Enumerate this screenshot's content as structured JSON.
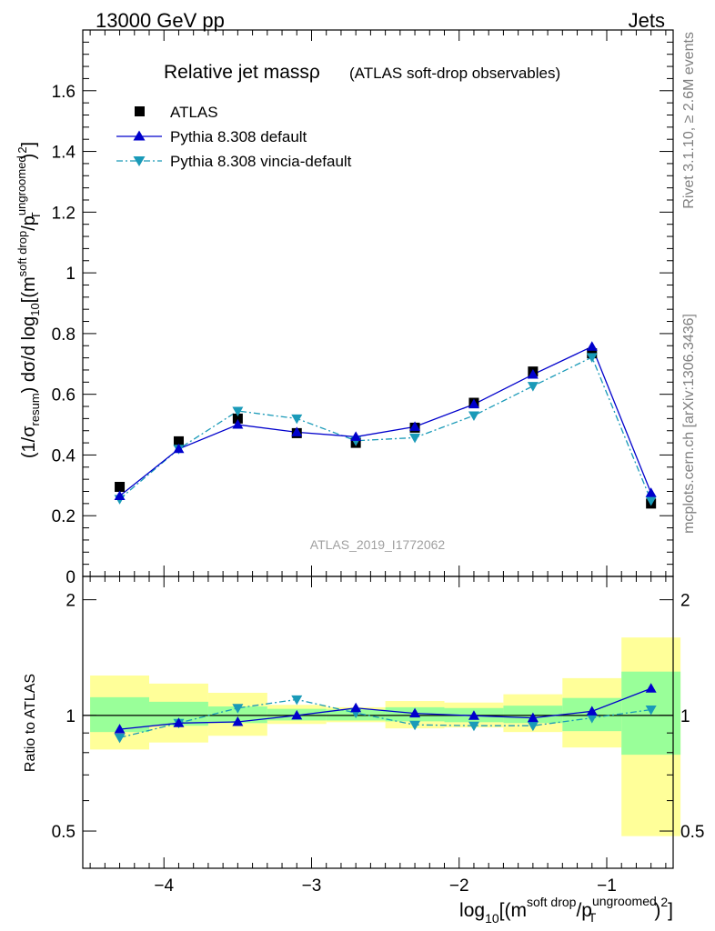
{
  "header": {
    "left": "13000 GeV pp",
    "right": "Jets"
  },
  "side_labels": {
    "rivet": "Rivet 3.1.10, ≥ 2.6M events",
    "mcplots": "mcplots.cern.ch [arXiv:1306.3436]"
  },
  "chart_data": [
    {
      "type": "scatter",
      "title": "Relative jet massρ",
      "subtitle": "(ATLAS soft-drop observables)",
      "analysis_label": "ATLAS_2019_I1772062",
      "ylabel": "(1/σresum) dσ/d log10[(m^soft drop/pT^ungroomed)^2]",
      "ylim": [
        0,
        1.8
      ],
      "yticks": [
        0,
        0.2,
        0.4,
        0.6,
        0.8,
        1,
        1.2,
        1.4,
        1.6
      ],
      "ytick_labels": [
        "0",
        "0.2",
        "0.4",
        "0.6",
        "0.8",
        "1",
        "1.2",
        "1.4",
        "1.6"
      ],
      "legend_position": "top-left",
      "x": [
        -4.3,
        -3.9,
        -3.5,
        -3.1,
        -2.7,
        -2.3,
        -1.9,
        -1.5,
        -1.1,
        -0.7
      ],
      "series": [
        {
          "name": "ATLAS",
          "marker": "square",
          "color": "#000000",
          "values": [
            0.295,
            0.445,
            0.52,
            0.472,
            0.44,
            0.49,
            0.572,
            0.675,
            0.735,
            0.24
          ]
        },
        {
          "name": "Pythia 8.308 default",
          "marker": "triangle-up",
          "color": "#0000cc",
          "line": "solid",
          "values": [
            0.265,
            0.42,
            0.5,
            0.475,
            0.46,
            0.493,
            0.567,
            0.665,
            0.757,
            0.275
          ]
        },
        {
          "name": "Pythia 8.308 vincia-default",
          "marker": "triangle-down",
          "color": "#1a9ab8",
          "line": "dash-dot",
          "values": [
            0.255,
            0.42,
            0.545,
            0.52,
            0.447,
            0.457,
            0.53,
            0.627,
            0.722,
            0.25
          ]
        }
      ]
    },
    {
      "type": "scatter",
      "ylabel": "Ratio to ATLAS",
      "xlabel": "log10[(m^soft drop/pT^ungroomed)^2]",
      "log_y": true,
      "ylim": [
        0.4,
        2.3
      ],
      "yticks": [
        0.5,
        1,
        2
      ],
      "ytick_labels": [
        "0.5",
        "1",
        "2"
      ],
      "xlim": [
        -4.55,
        -0.55
      ],
      "xticks": [
        -4,
        -3,
        -2,
        -1
      ],
      "xtick_labels": [
        "−4",
        "−3",
        "−2",
        "−1"
      ],
      "x": [
        -4.3,
        -3.9,
        -3.5,
        -3.1,
        -2.7,
        -2.3,
        -1.9,
        -1.5,
        -1.1,
        -0.7
      ],
      "bins": [
        [
          -4.5,
          -4.1
        ],
        [
          -4.1,
          -3.7
        ],
        [
          -3.7,
          -3.3
        ],
        [
          -3.3,
          -2.9
        ],
        [
          -2.9,
          -2.5
        ],
        [
          -2.5,
          -2.1
        ],
        [
          -2.1,
          -1.7
        ],
        [
          -1.7,
          -1.3
        ],
        [
          -1.3,
          -0.9
        ],
        [
          -0.9,
          -0.5
        ]
      ],
      "band_stat": [
        [
          0.905,
          1.115
        ],
        [
          0.94,
          1.085
        ],
        [
          0.955,
          1.055
        ],
        [
          0.97,
          1.04
        ],
        [
          0.97,
          1.035
        ],
        [
          0.965,
          1.05
        ],
        [
          0.96,
          1.045
        ],
        [
          0.955,
          1.06
        ],
        [
          0.91,
          1.11
        ],
        [
          0.79,
          1.3
        ]
      ],
      "band_total": [
        [
          0.815,
          1.27
        ],
        [
          0.85,
          1.21
        ],
        [
          0.885,
          1.145
        ],
        [
          0.95,
          1.065
        ],
        [
          0.96,
          1.05
        ],
        [
          0.925,
          1.09
        ],
        [
          0.93,
          1.08
        ],
        [
          0.905,
          1.135
        ],
        [
          0.825,
          1.25
        ],
        [
          0.485,
          1.595
        ]
      ],
      "band_colors": {
        "stat": "#99ff99",
        "total": "#ffff99"
      },
      "series": [
        {
          "name": "Pythia 8.308 default",
          "color": "#0000cc",
          "values": [
            0.92,
            0.955,
            0.962,
            1.0,
            1.045,
            1.012,
            0.998,
            0.985,
            1.025,
            1.175
          ]
        },
        {
          "name": "Pythia 8.308 vincia-default",
          "color": "#1a9ab8",
          "values": [
            0.875,
            0.955,
            1.045,
            1.1,
            1.015,
            0.945,
            0.94,
            0.94,
            0.985,
            1.035
          ]
        }
      ]
    }
  ]
}
